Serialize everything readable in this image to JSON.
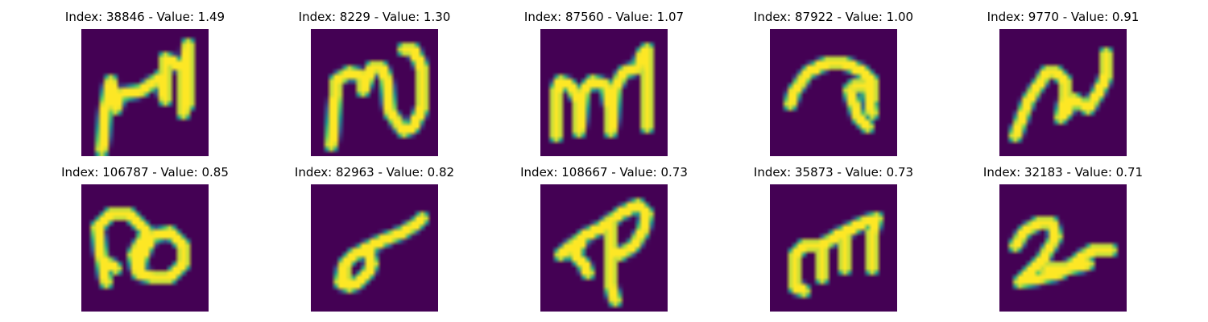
{
  "colors": {
    "background": "#440154",
    "low": "#3b528b",
    "mid": "#21918c",
    "high": "#5ec962",
    "peak": "#fde725"
  },
  "panels": [
    {
      "title": "Index: 38846 - Value: 1.49",
      "glyph": "m-tall-right"
    },
    {
      "title": "Index: 8229 - Value: 1.30",
      "glyph": "n-loop"
    },
    {
      "title": "Index: 87560 - Value: 1.07",
      "glyph": "m-bold"
    },
    {
      "title": "Index: 87922 - Value: 1.00",
      "glyph": "hook"
    },
    {
      "title": "Index: 9770 - Value: 0.91",
      "glyph": "n-wave"
    },
    {
      "title": "Index: 106787 - Value: 0.85",
      "glyph": "infinity"
    },
    {
      "title": "Index: 82963 - Value: 0.82",
      "glyph": "blob"
    },
    {
      "title": "Index: 108667 - Value: 0.73",
      "glyph": "arrow-p"
    },
    {
      "title": "Index: 35873 - Value: 0.73",
      "glyph": "m-thin"
    },
    {
      "title": "Index: 32183 - Value: 0.71",
      "glyph": "squiggle-2"
    }
  ]
}
